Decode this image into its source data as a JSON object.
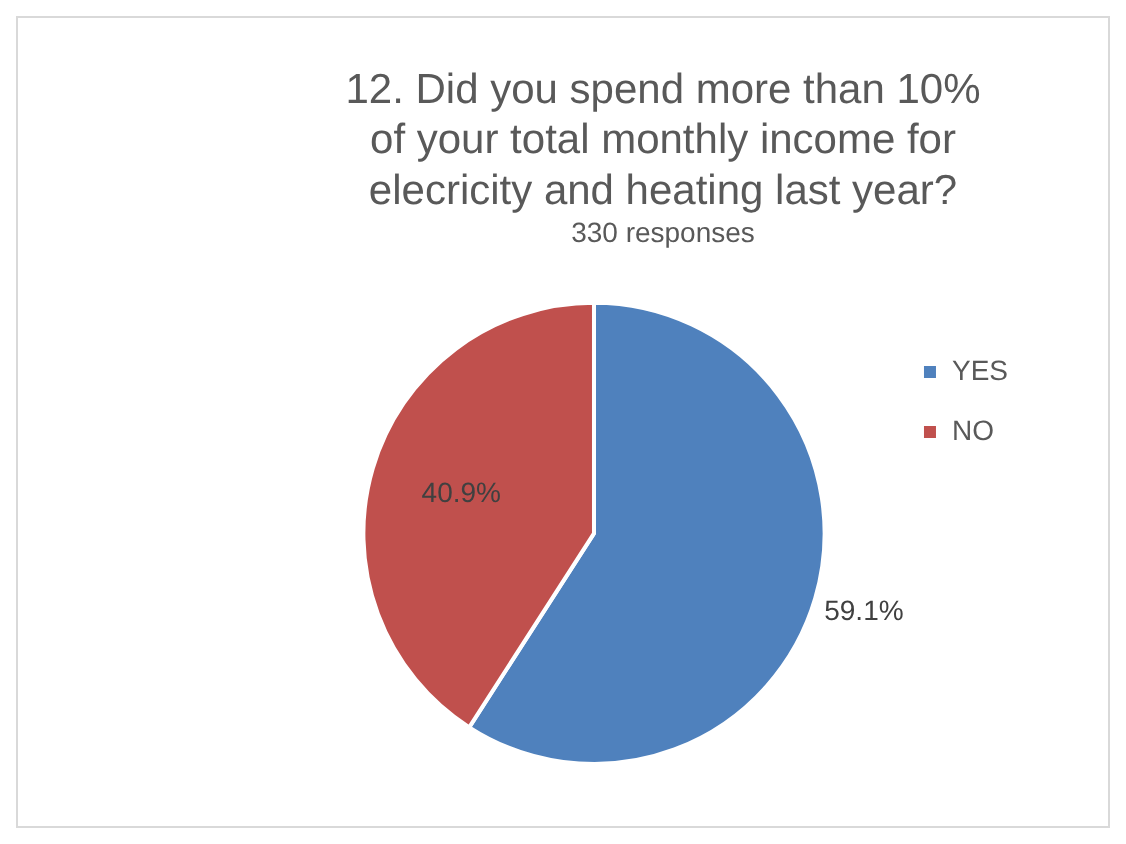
{
  "chart_data": {
    "type": "pie",
    "title": "12. Did you spend more than 10% of your total monthly income for elecricity and heating last year?",
    "subtitle": "330 responses",
    "categories": [
      "YES",
      "NO"
    ],
    "values": [
      59.1,
      40.9
    ],
    "colors": [
      "#4f81bd",
      "#c0504d"
    ],
    "value_labels": [
      "59.1%",
      "40.9%"
    ],
    "legend": "right"
  }
}
